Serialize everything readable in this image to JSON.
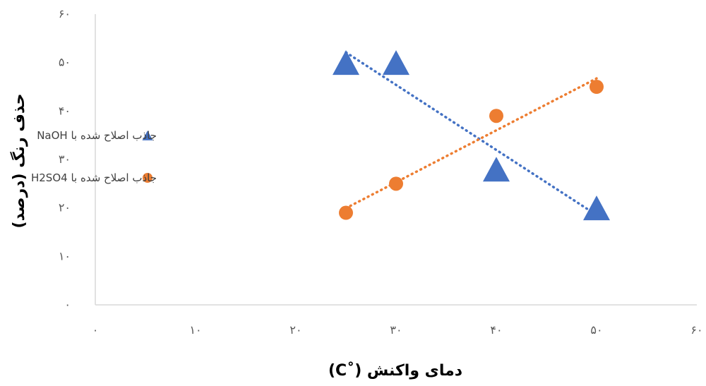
{
  "chart_data": {
    "type": "scatter",
    "xlabel": "دمای واکنش (˚C)",
    "ylabel": "حذف رنگ (درصد)",
    "xlim": [
      0,
      60
    ],
    "ylim": [
      0,
      60
    ],
    "x_ticks": [
      0,
      10,
      20,
      30,
      40,
      50,
      60
    ],
    "y_ticks": [
      0,
      10,
      20,
      30,
      40,
      50,
      60
    ],
    "x_tick_labels": [
      "۰",
      "۱۰",
      "۲۰",
      "۳۰",
      "۴۰",
      "۵۰",
      "۶۰"
    ],
    "y_tick_labels": [
      "۰",
      "۱۰",
      "۲۰",
      "۳۰",
      "۴۰",
      "۵۰",
      "۶۰"
    ],
    "grid": false,
    "legend_position": "left",
    "trendline": "linear, dotted",
    "series": [
      {
        "name": "جاذب اصلاح شده با NaOH",
        "marker": "triangle",
        "color": "#4472C4",
        "x": [
          25,
          30,
          40,
          50
        ],
        "y": [
          50,
          50,
          28,
          20
        ]
      },
      {
        "name": "جاذب اصلاح شده با H2SO4",
        "marker": "circle",
        "color": "#ED7D31",
        "x": [
          25,
          30,
          40,
          50
        ],
        "y": [
          19,
          25,
          39,
          45
        ]
      }
    ]
  }
}
